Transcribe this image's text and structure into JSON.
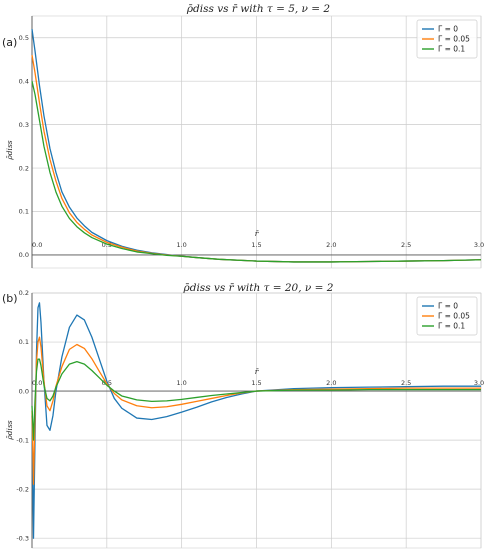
{
  "chart_data": [
    {
      "type": "line",
      "panel_label": "(a)",
      "title": "ρ̄diss  vs  r̄  with  τ = 5, ν = 2",
      "xlabel": "r̄",
      "ylabel": "ρ̄diss",
      "xlim": [
        0,
        3.0
      ],
      "ylim": [
        -0.03,
        0.55
      ],
      "xticks": [
        "0.0",
        "0.5",
        "1.0",
        "1.5",
        "2.0",
        "2.5",
        "3.0"
      ],
      "yticks": [
        "0.5",
        "0.4",
        "0.3",
        "0.2",
        "0.1",
        "0.0"
      ],
      "grid": true,
      "legend_position": "top-right",
      "x": [
        0.0,
        0.02,
        0.05,
        0.08,
        0.12,
        0.16,
        0.2,
        0.25,
        0.3,
        0.35,
        0.4,
        0.5,
        0.6,
        0.7,
        0.8,
        0.9,
        1.0,
        1.1,
        1.25,
        1.5,
        1.75,
        2.0,
        2.25,
        2.5,
        2.75,
        3.0
      ],
      "series": [
        {
          "name": "Γ = 0",
          "color": "#1f77b4",
          "values": [
            0.52,
            0.47,
            0.39,
            0.32,
            0.245,
            0.19,
            0.145,
            0.11,
            0.085,
            0.067,
            0.052,
            0.033,
            0.02,
            0.011,
            0.005,
            0.001,
            -0.003,
            -0.006,
            -0.01,
            -0.014,
            -0.016,
            -0.016,
            -0.015,
            -0.014,
            -0.013,
            -0.011
          ]
        },
        {
          "name": "Γ = 0.05",
          "color": "#ff7f0e",
          "values": [
            0.46,
            0.42,
            0.35,
            0.285,
            0.22,
            0.17,
            0.13,
            0.097,
            0.075,
            0.059,
            0.046,
            0.029,
            0.018,
            0.009,
            0.004,
            0.0,
            -0.003,
            -0.006,
            -0.01,
            -0.014,
            -0.016,
            -0.016,
            -0.015,
            -0.014,
            -0.013,
            -0.011
          ]
        },
        {
          "name": "Γ = 0.1",
          "color": "#2ca02c",
          "values": [
            0.4,
            0.37,
            0.31,
            0.25,
            0.19,
            0.145,
            0.112,
            0.084,
            0.065,
            0.051,
            0.04,
            0.025,
            0.015,
            0.007,
            0.003,
            -0.001,
            -0.003,
            -0.006,
            -0.01,
            -0.014,
            -0.016,
            -0.016,
            -0.015,
            -0.014,
            -0.013,
            -0.011
          ]
        }
      ]
    },
    {
      "type": "line",
      "panel_label": "(b)",
      "title": "ρ̄diss  vs  r̄  with  τ = 20, ν = 2",
      "xlabel": "r̄",
      "ylabel": "ρ̄diss",
      "xlim": [
        0,
        3.0
      ],
      "ylim": [
        -0.32,
        0.2
      ],
      "xticks": [
        "0.0",
        "0.5",
        "1.0",
        "1.5",
        "2.0",
        "2.5",
        "3.0"
      ],
      "yticks": [
        "0.2",
        "0.1",
        "0.0",
        "-0.1",
        "-0.2",
        "-0.3"
      ],
      "grid": true,
      "legend_position": "top-right",
      "x": [
        0.0,
        0.01,
        0.02,
        0.03,
        0.04,
        0.05,
        0.06,
        0.08,
        0.1,
        0.12,
        0.14,
        0.16,
        0.2,
        0.25,
        0.3,
        0.35,
        0.4,
        0.45,
        0.5,
        0.55,
        0.6,
        0.7,
        0.8,
        0.9,
        1.0,
        1.1,
        1.2,
        1.3,
        1.4,
        1.5,
        1.75,
        2.0,
        2.25,
        2.5,
        2.75,
        3.0
      ],
      "series": [
        {
          "name": "Γ = 0",
          "color": "#1f77b4",
          "values": [
            -0.05,
            -0.3,
            -0.1,
            0.08,
            0.17,
            0.18,
            0.14,
            0.02,
            -0.07,
            -0.08,
            -0.05,
            0.0,
            0.07,
            0.13,
            0.155,
            0.145,
            0.11,
            0.065,
            0.02,
            -0.015,
            -0.035,
            -0.055,
            -0.058,
            -0.052,
            -0.043,
            -0.033,
            -0.022,
            -0.013,
            -0.006,
            0.0,
            0.005,
            0.007,
            0.008,
            0.009,
            0.01,
            0.01
          ]
        },
        {
          "name": "Γ = 0.05",
          "color": "#ff7f0e",
          "values": [
            -0.04,
            -0.19,
            -0.05,
            0.06,
            0.1,
            0.11,
            0.09,
            0.02,
            -0.03,
            -0.04,
            -0.02,
            0.01,
            0.05,
            0.085,
            0.095,
            0.087,
            0.066,
            0.04,
            0.015,
            -0.005,
            -0.018,
            -0.03,
            -0.034,
            -0.032,
            -0.027,
            -0.021,
            -0.015,
            -0.009,
            -0.004,
            0.0,
            0.003,
            0.004,
            0.005,
            0.006,
            0.006,
            0.006
          ]
        },
        {
          "name": "Γ = 0.1",
          "color": "#2ca02c",
          "values": [
            -0.03,
            -0.1,
            -0.02,
            0.04,
            0.065,
            0.065,
            0.052,
            0.012,
            -0.015,
            -0.02,
            -0.01,
            0.008,
            0.035,
            0.055,
            0.06,
            0.055,
            0.042,
            0.027,
            0.012,
            0.0,
            -0.01,
            -0.018,
            -0.021,
            -0.02,
            -0.017,
            -0.013,
            -0.009,
            -0.006,
            -0.003,
            0.0,
            0.002,
            0.002,
            0.003,
            0.003,
            0.003,
            0.003
          ]
        }
      ]
    }
  ]
}
